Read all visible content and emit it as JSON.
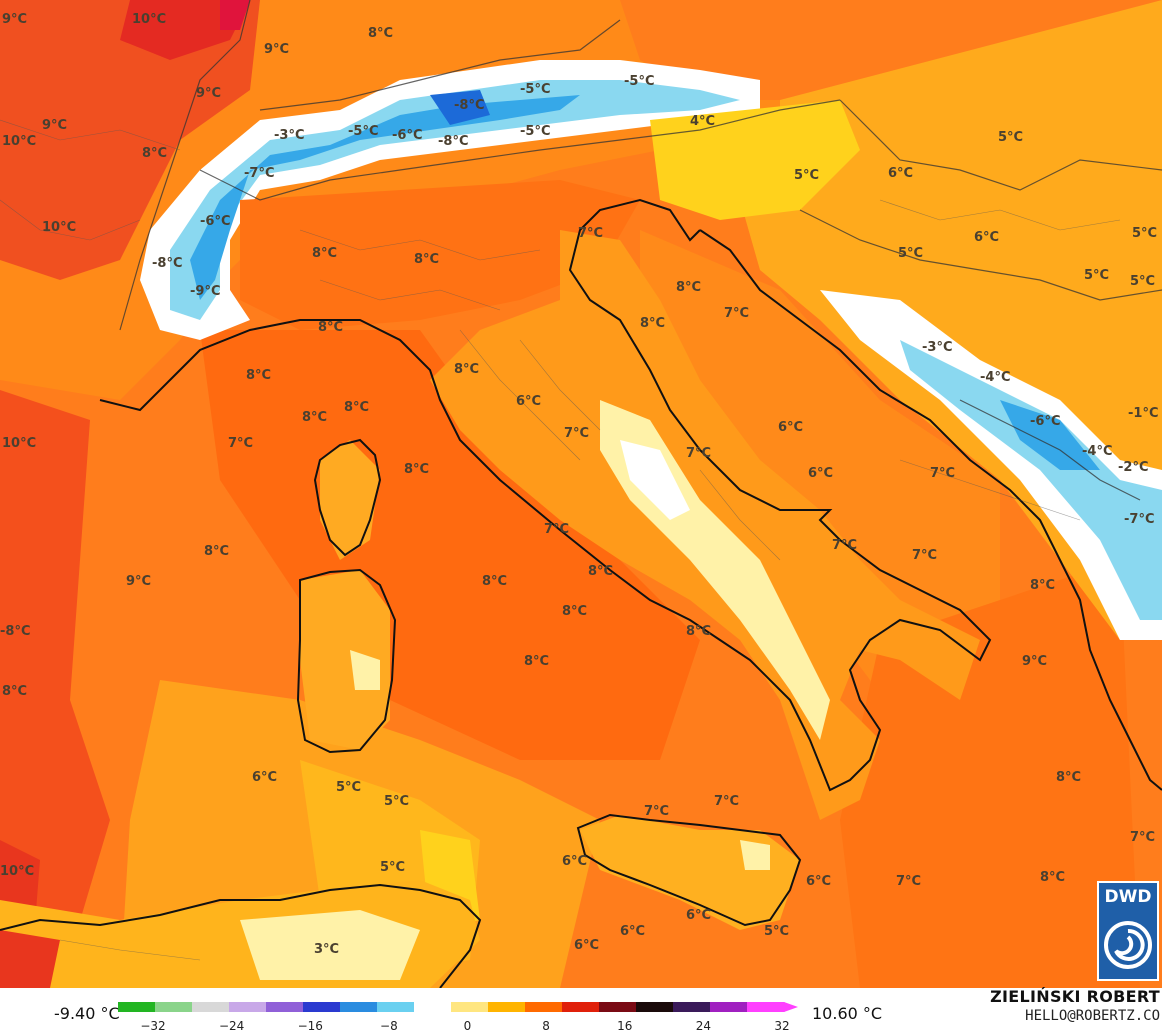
{
  "map": {
    "type": "temperature",
    "provider_logo": "DWD",
    "labels": [
      {
        "text": "9°C"
      },
      {
        "text": "10°C"
      },
      {
        "text": "9°C"
      },
      {
        "text": "8°C"
      },
      {
        "text": "9°C"
      },
      {
        "text": "9°C"
      },
      {
        "text": "10°C"
      },
      {
        "text": "8°C"
      },
      {
        "text": "-3°C"
      },
      {
        "text": "-7°C"
      },
      {
        "text": "-6°C"
      },
      {
        "text": "10°C"
      },
      {
        "text": "-8°C"
      },
      {
        "text": "-9°C"
      },
      {
        "text": "-5°C"
      },
      {
        "text": "-6°C"
      },
      {
        "text": "-8°C"
      },
      {
        "text": "-8°C"
      },
      {
        "text": "-5°C"
      },
      {
        "text": "-5°C"
      },
      {
        "text": "-5°C"
      },
      {
        "text": "4°C"
      },
      {
        "text": "5°C"
      },
      {
        "text": "6°C"
      },
      {
        "text": "5°C"
      },
      {
        "text": "6°C"
      },
      {
        "text": "5°C"
      },
      {
        "text": "5°C"
      },
      {
        "text": "5°C"
      },
      {
        "text": "5°C"
      },
      {
        "text": "7°C"
      },
      {
        "text": "8°C"
      },
      {
        "text": "8°C"
      },
      {
        "text": "8°C"
      },
      {
        "text": "8°C"
      },
      {
        "text": "7°C"
      },
      {
        "text": "-3°C"
      },
      {
        "text": "-4°C"
      },
      {
        "text": "-6°C"
      },
      {
        "text": "-1°C"
      },
      {
        "text": "-4°C"
      },
      {
        "text": "-2°C"
      },
      {
        "text": "-7°C"
      },
      {
        "text": "10°C"
      },
      {
        "text": "8°C"
      },
      {
        "text": "8°C"
      },
      {
        "text": "8°C"
      },
      {
        "text": "8°C"
      },
      {
        "text": "8°C"
      },
      {
        "text": "7°C"
      },
      {
        "text": "8°C"
      },
      {
        "text": "6°C"
      },
      {
        "text": "7°C"
      },
      {
        "text": "7°C"
      },
      {
        "text": "6°C"
      },
      {
        "text": "6°C"
      },
      {
        "text": "7°C"
      },
      {
        "text": "7°C"
      },
      {
        "text": "7°C"
      },
      {
        "text": "7°C"
      },
      {
        "text": "8°C"
      },
      {
        "text": "8°C"
      },
      {
        "text": "9°C"
      },
      {
        "text": "8°C"
      },
      {
        "text": "8°C"
      },
      {
        "text": "8°C"
      },
      {
        "text": "-8°C"
      },
      {
        "text": "9°C"
      },
      {
        "text": "8°C"
      },
      {
        "text": "8°C"
      },
      {
        "text": "8°C"
      },
      {
        "text": "6°C"
      },
      {
        "text": "5°C"
      },
      {
        "text": "5°C"
      },
      {
        "text": "7°C"
      },
      {
        "text": "7°C"
      },
      {
        "text": "8°C"
      },
      {
        "text": "7°C"
      },
      {
        "text": "10°C"
      },
      {
        "text": "5°C"
      },
      {
        "text": "6°C"
      },
      {
        "text": "6°C"
      },
      {
        "text": "7°C"
      },
      {
        "text": "8°C"
      },
      {
        "text": "3°C"
      },
      {
        "text": "6°C"
      },
      {
        "text": "6°C"
      },
      {
        "text": "6°C"
      },
      {
        "text": "5°C"
      }
    ]
  },
  "legend": {
    "min_label": "-9.40 °C",
    "max_label": "10.60 °C",
    "ticks": [
      "−32",
      "−24",
      "−16",
      "−8",
      "0",
      "8",
      "16",
      "24",
      "32"
    ],
    "colorbar_stops": [
      "#22b522",
      "#8ad48a",
      "#d8d8d8",
      "#c8a8e8",
      "#9060d8",
      "#2a3ad0",
      "#2a8ce0",
      "#6ad0f0",
      "#ffffff",
      "#ffe680",
      "#ffb400",
      "#ff6a00",
      "#e0200a",
      "#7a0a14",
      "#1a0a0a",
      "#3a1a5a",
      "#a020c0",
      "#ff40ff"
    ]
  },
  "credits": {
    "name": "ZIELIŃSKI ROBERT",
    "email": "HELLO@ROBERTZ.CO"
  }
}
